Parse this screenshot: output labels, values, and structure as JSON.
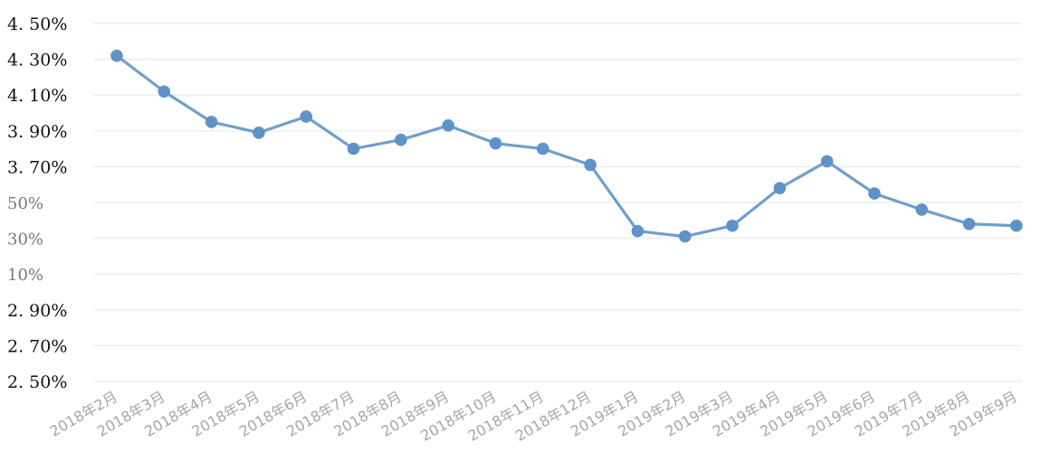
{
  "chart_data": {
    "type": "line",
    "title": "",
    "xlabel": "",
    "ylabel": "",
    "grid": true,
    "legend": "none",
    "ylim": [
      2.5,
      4.5
    ],
    "categories": [
      "2018年2月",
      "2018年3月",
      "2018年4月",
      "2018年5月",
      "2018年6月",
      "2018年7月",
      "2018年8月",
      "2018年9月",
      "2018年10月",
      "2018年11月",
      "2018年12月",
      "2019年1月",
      "2019年2月",
      "2019年3月",
      "2019年4月",
      "2019年5月",
      "2019年6月",
      "2019年7月",
      "2019年8月",
      "2019年9月"
    ],
    "y_tick_labels": [
      "4. 50%",
      "4. 30%",
      "4. 10%",
      "3. 90%",
      "3. 70%",
      "50%",
      "30%",
      "10%",
      "2. 90%",
      "2. 70%",
      "2. 50%"
    ],
    "y_tick_values": [
      4.5,
      4.3,
      4.1,
      3.9,
      3.7,
      3.5,
      3.3,
      3.1,
      2.9,
      2.7,
      2.5
    ],
    "series": [
      {
        "values": [
          4.32,
          4.12,
          3.95,
          3.89,
          3.98,
          3.8,
          3.85,
          3.93,
          3.83,
          3.8,
          3.71,
          3.34,
          3.31,
          3.37,
          3.58,
          3.73,
          3.55,
          3.46,
          3.38,
          3.37
        ]
      }
    ],
    "colors": {
      "line": "#6f9fcd",
      "points": "#5f93c8",
      "grid": "#e9eef4"
    }
  }
}
